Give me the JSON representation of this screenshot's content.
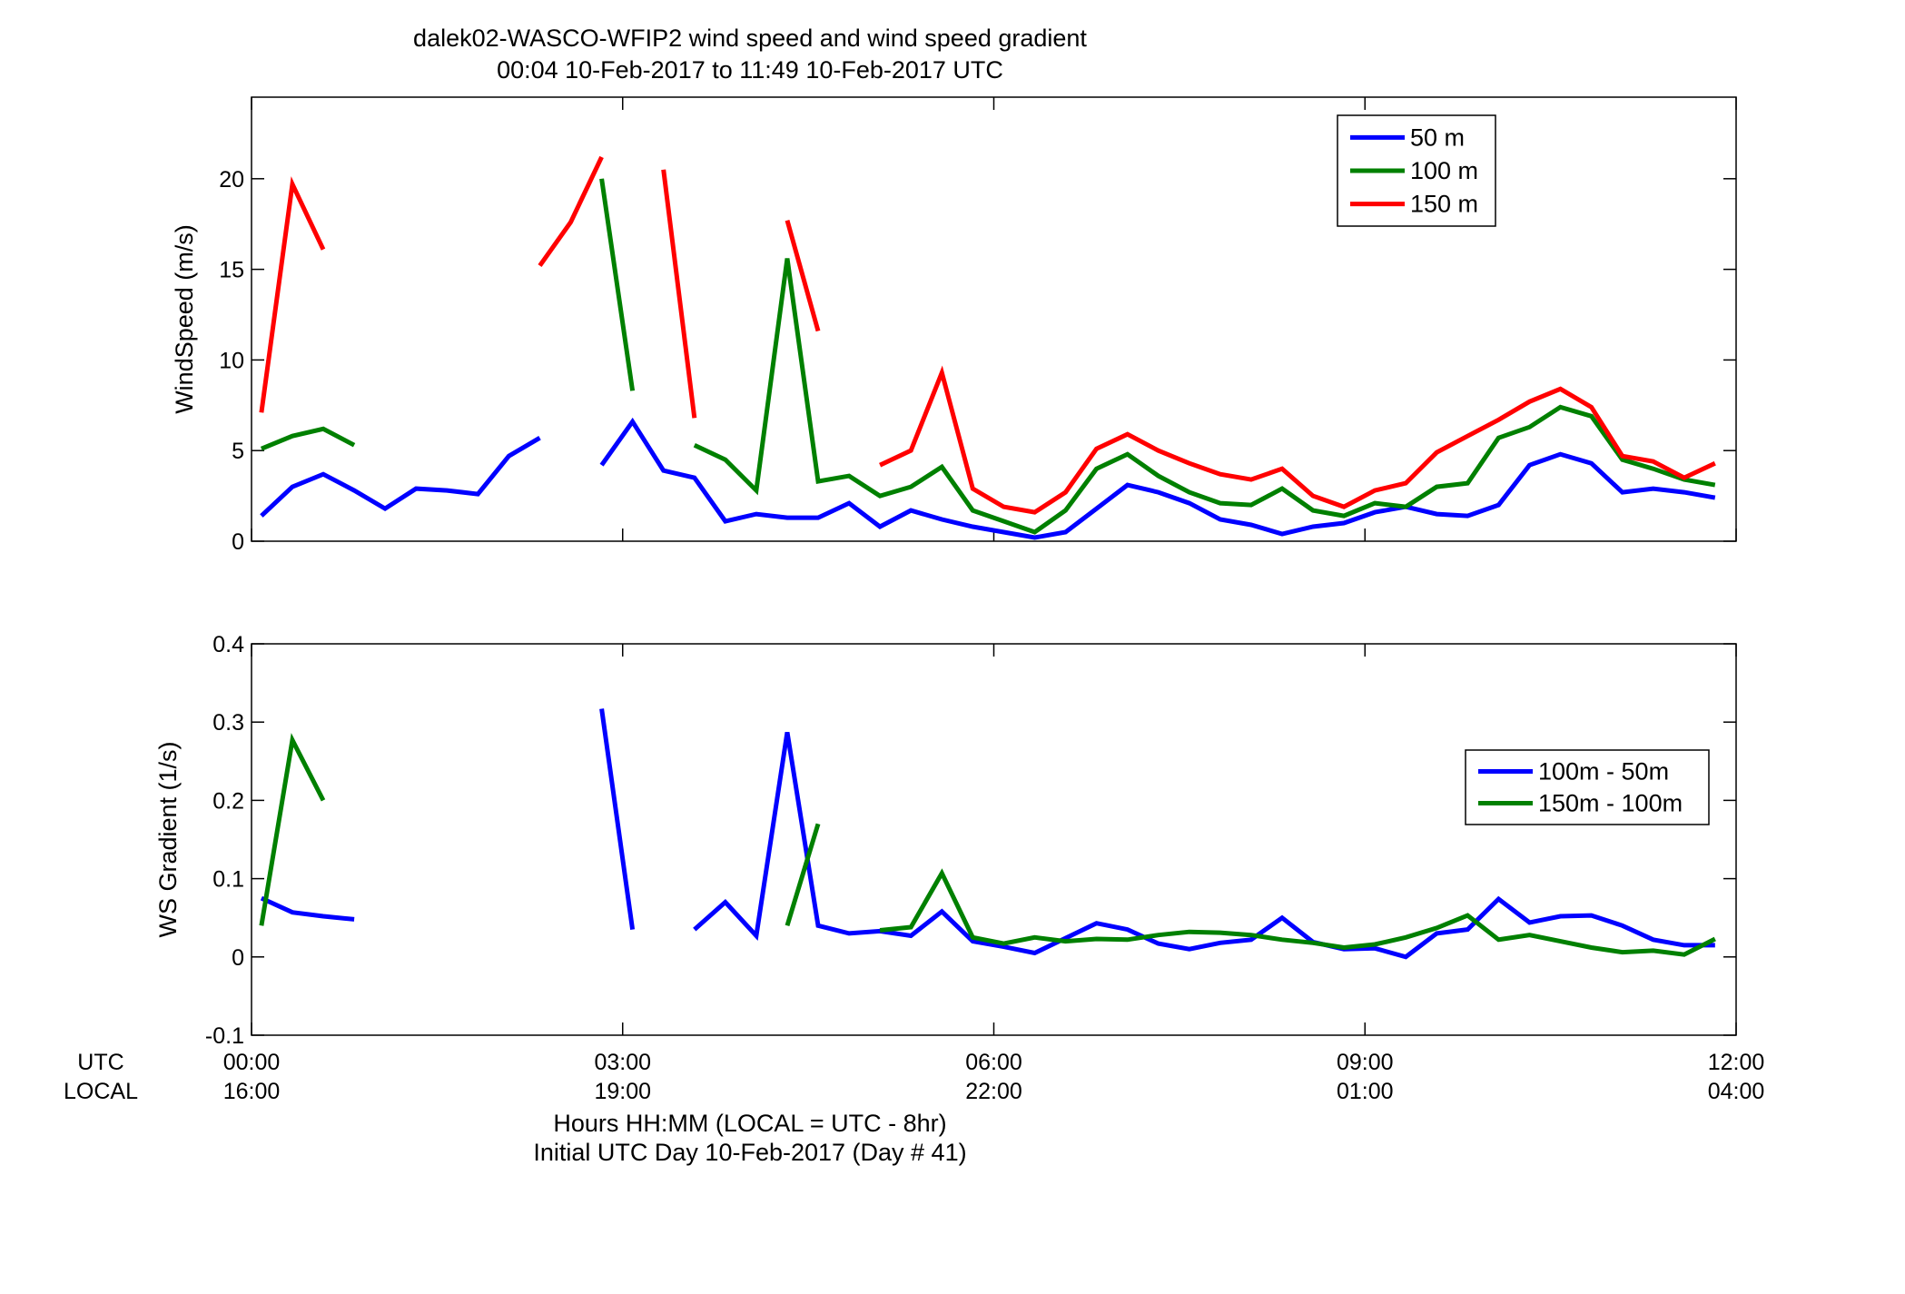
{
  "title_line1": "dalek02-WASCO-WFIP2  wind speed and wind speed gradient",
  "title_line2": "00:04 10-Feb-2017 to 11:49 10-Feb-2017  UTC",
  "row_label_utc": "UTC",
  "row_label_local": "LOCAL",
  "xlabel_line1": "Hours HH:MM  (LOCAL = UTC - 8hr)",
  "xlabel_line2": "Initial UTC Day 10-Feb-2017 (Day # 41)",
  "x_ticks": [
    {
      "hours": 0,
      "utc": "00:00",
      "local": "16:00"
    },
    {
      "hours": 3,
      "utc": "03:00",
      "local": "19:00"
    },
    {
      "hours": 6,
      "utc": "06:00",
      "local": "22:00"
    },
    {
      "hours": 9,
      "utc": "09:00",
      "local": "01:00"
    },
    {
      "hours": 12,
      "utc": "12:00",
      "local": "04:00"
    }
  ],
  "chart_data": [
    {
      "type": "line",
      "title": "dalek02-WASCO-WFIP2  wind speed and wind speed gradient",
      "ylabel": "WindSpeed (m/s)",
      "xlim_hours": [
        0,
        12
      ],
      "ylim": [
        0,
        24.5
      ],
      "yticks": [
        0,
        5,
        10,
        15,
        20
      ],
      "legend_position": "top-right",
      "grid": false,
      "x_hours": [
        0.08,
        0.33,
        0.58,
        0.83,
        1.08,
        1.33,
        1.58,
        1.83,
        2.08,
        2.33,
        2.58,
        2.83,
        3.08,
        3.33,
        3.58,
        3.83,
        4.08,
        4.33,
        4.58,
        4.83,
        5.08,
        5.33,
        5.58,
        5.83,
        6.08,
        6.33,
        6.58,
        6.83,
        7.08,
        7.33,
        7.58,
        7.83,
        8.08,
        8.33,
        8.58,
        8.83,
        9.08,
        9.33,
        9.58,
        9.83,
        10.08,
        10.33,
        10.58,
        10.83,
        11.08,
        11.33,
        11.58,
        11.83
      ],
      "series": [
        {
          "name": "50 m",
          "color": "#0000ff",
          "values": [
            1.4,
            3.0,
            3.7,
            2.8,
            1.8,
            2.9,
            2.8,
            2.6,
            4.7,
            5.7,
            null,
            4.2,
            6.6,
            3.9,
            3.5,
            1.1,
            1.5,
            1.3,
            1.3,
            2.1,
            0.8,
            1.7,
            1.2,
            0.8,
            0.5,
            0.2,
            0.5,
            1.8,
            3.1,
            2.7,
            2.1,
            1.2,
            0.9,
            0.4,
            0.8,
            1.0,
            1.6,
            1.9,
            1.5,
            1.4,
            2.0,
            4.2,
            4.8,
            4.3,
            2.7,
            2.9,
            2.7,
            2.4
          ]
        },
        {
          "name": "100 m",
          "color": "#008000",
          "values": [
            5.1,
            5.8,
            6.2,
            5.3,
            null,
            null,
            null,
            null,
            null,
            null,
            null,
            20.0,
            8.3,
            null,
            5.3,
            4.5,
            2.8,
            15.6,
            3.3,
            3.6,
            2.5,
            3.0,
            4.1,
            1.7,
            1.1,
            0.5,
            1.7,
            4.0,
            4.8,
            3.6,
            2.7,
            2.1,
            2.0,
            2.9,
            1.7,
            1.4,
            2.1,
            1.9,
            3.0,
            3.2,
            5.7,
            6.3,
            7.4,
            6.9,
            4.5,
            4.0,
            3.4,
            3.1
          ]
        },
        {
          "name": "150 m",
          "color": "#ff0000",
          "values": [
            7.1,
            19.7,
            16.1,
            null,
            null,
            null,
            null,
            null,
            null,
            15.2,
            17.6,
            21.2,
            null,
            20.5,
            6.8,
            null,
            null,
            17.7,
            11.6,
            null,
            4.2,
            5.0,
            9.3,
            2.9,
            1.9,
            1.6,
            2.7,
            5.1,
            5.9,
            5.0,
            4.3,
            3.7,
            3.4,
            4.0,
            2.5,
            1.9,
            2.8,
            3.2,
            4.9,
            5.8,
            6.7,
            7.7,
            8.4,
            7.4,
            4.7,
            4.4,
            3.5,
            4.3
          ]
        }
      ]
    },
    {
      "type": "line",
      "ylabel": "WS Gradient (1/s)",
      "xlim_hours": [
        0,
        12
      ],
      "ylim": [
        -0.1,
        0.4
      ],
      "yticks": [
        -0.1,
        0,
        0.1,
        0.2,
        0.3,
        0.4
      ],
      "legend_position": "center-right",
      "grid": false,
      "x_hours": [
        0.08,
        0.33,
        0.58,
        0.83,
        1.08,
        1.33,
        1.58,
        1.83,
        2.08,
        2.33,
        2.58,
        2.83,
        3.08,
        3.33,
        3.58,
        3.83,
        4.08,
        4.33,
        4.58,
        4.83,
        5.08,
        5.33,
        5.58,
        5.83,
        6.08,
        6.33,
        6.58,
        6.83,
        7.08,
        7.33,
        7.58,
        7.83,
        8.08,
        8.33,
        8.58,
        8.83,
        9.08,
        9.33,
        9.58,
        9.83,
        10.08,
        10.33,
        10.58,
        10.83,
        11.08,
        11.33,
        11.58,
        11.83
      ],
      "series": [
        {
          "name": "100m - 50m",
          "color": "#0000ff",
          "values": [
            0.075,
            0.057,
            0.052,
            0.048,
            null,
            null,
            null,
            null,
            null,
            null,
            null,
            0.317,
            0.035,
            null,
            0.035,
            0.07,
            0.027,
            0.287,
            0.04,
            0.03,
            0.033,
            0.027,
            0.058,
            0.02,
            0.013,
            0.005,
            0.024,
            0.043,
            0.035,
            0.017,
            0.01,
            0.018,
            0.022,
            0.05,
            0.019,
            0.01,
            0.011,
            0.0,
            0.03,
            0.035,
            0.074,
            0.044,
            0.052,
            0.053,
            0.04,
            0.022,
            0.015,
            0.015
          ]
        },
        {
          "name": "150m - 100m",
          "color": "#008000",
          "values": [
            0.04,
            0.277,
            0.2,
            null,
            null,
            null,
            null,
            null,
            null,
            null,
            null,
            null,
            null,
            null,
            null,
            null,
            null,
            0.04,
            0.17,
            null,
            0.034,
            0.038,
            0.107,
            0.025,
            0.017,
            0.025,
            0.02,
            0.023,
            0.022,
            0.028,
            0.032,
            0.031,
            0.028,
            0.022,
            0.018,
            0.012,
            0.016,
            0.025,
            0.037,
            0.053,
            0.022,
            0.028,
            0.02,
            0.012,
            0.006,
            0.008,
            0.003,
            0.023
          ]
        }
      ]
    }
  ]
}
